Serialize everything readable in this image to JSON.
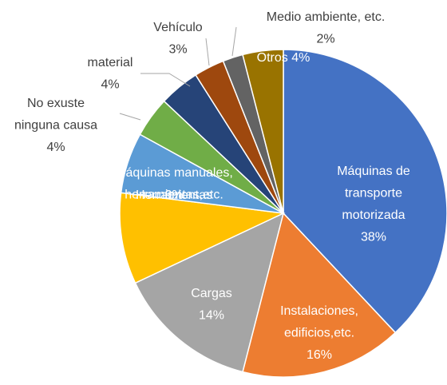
{
  "chart_data": {
    "type": "pie",
    "categories": [
      "Máquinas de\ntransporte\nmotorizada",
      "Instalaciones,\nedificios,etc.",
      "Cargas",
      "Máquinas manuales,\nherramientas,etc.",
      "Herramientas",
      "No exuste\nninguna causa",
      "material",
      "Vehículo",
      "Medio ambiente, etc.",
      "Otros"
    ],
    "values": [
      38,
      16,
      14,
      9,
      6,
      4,
      4,
      3,
      2,
      4
    ],
    "value_labels": [
      "38%",
      "16%",
      "14%",
      "9%",
      "6%",
      "4%",
      "4%",
      "3%",
      "2%",
      "4%"
    ],
    "colors": [
      "#4472c4",
      "#ed7d31",
      "#a5a5a5",
      "#ffc000",
      "#5b9bd5",
      "#70ad47",
      "#264478",
      "#9e480e",
      "#636363",
      "#997300"
    ]
  }
}
